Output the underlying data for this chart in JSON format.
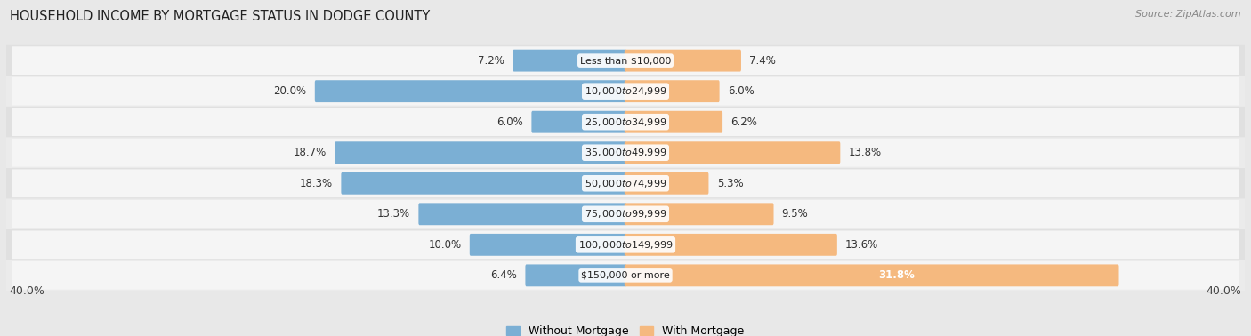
{
  "title": "HOUSEHOLD INCOME BY MORTGAGE STATUS IN DODGE COUNTY",
  "source": "Source: ZipAtlas.com",
  "categories": [
    "Less than $10,000",
    "$10,000 to $24,999",
    "$25,000 to $34,999",
    "$35,000 to $49,999",
    "$50,000 to $74,999",
    "$75,000 to $99,999",
    "$100,000 to $149,999",
    "$150,000 or more"
  ],
  "without_mortgage": [
    7.2,
    20.0,
    6.0,
    18.7,
    18.3,
    13.3,
    10.0,
    6.4
  ],
  "with_mortgage": [
    7.4,
    6.0,
    6.2,
    13.8,
    5.3,
    9.5,
    13.6,
    31.8
  ],
  "color_without": "#7bafd4",
  "color_with": "#f5b97f",
  "axis_limit": 40.0,
  "bg_color": "#e8e8e8",
  "row_bg_even": "#e0e0e0",
  "row_bg_odd": "#ebebeb",
  "row_inner_bg": "#f5f5f5",
  "legend_label_without": "Without Mortgage",
  "legend_label_with": "With Mortgage",
  "label_fontsize": 8.5,
  "cat_fontsize": 8.0,
  "title_fontsize": 10.5
}
